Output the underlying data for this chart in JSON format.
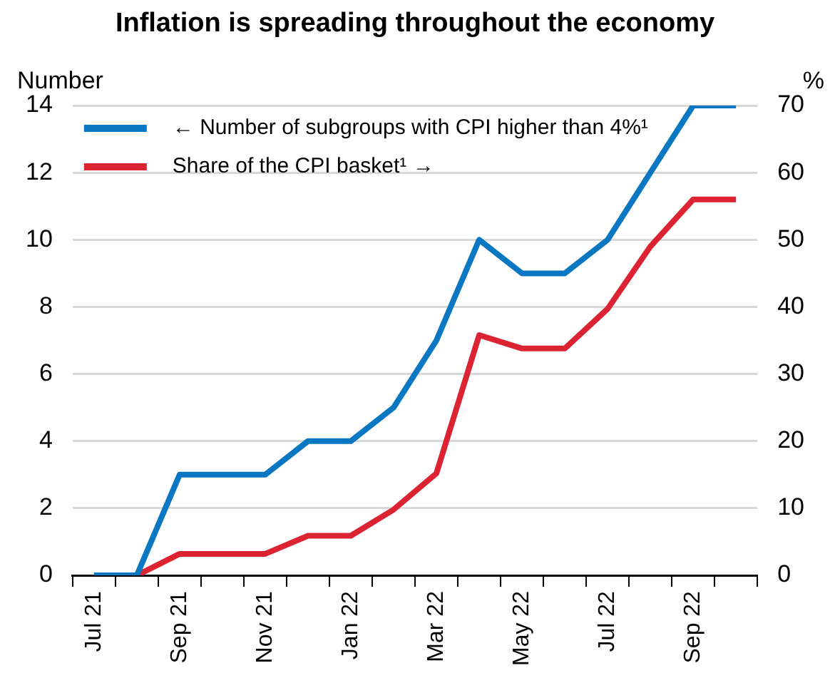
{
  "chart_data": {
    "type": "line",
    "title": "Inflation is spreading throughout the economy",
    "ylabel": "Number",
    "y2label": "%",
    "categories": [
      "Jul 21",
      null,
      "Sep 21",
      null,
      "Nov 21",
      null,
      "Jan 22",
      null,
      "Mar 22",
      null,
      "May 22",
      null,
      "Jul 22",
      null,
      "Sep 22",
      null
    ],
    "series": [
      {
        "name": "← Number of subgroups with CPI higher than 4%¹",
        "color": "#0a77c2",
        "values": [
          0,
          0,
          3,
          3,
          3,
          4,
          4,
          5,
          7,
          10,
          9,
          9,
          10,
          12,
          14,
          14
        ]
      },
      {
        "name": "Share of the CPI basket¹ →",
        "color": "#dc2332",
        "axis": "y2",
        "values": [
          0,
          0,
          3.2,
          3.2,
          3.2,
          5.9,
          5.9,
          9.8,
          15.2,
          35.8,
          33.8,
          33.8,
          39.7,
          49,
          56,
          56
        ]
      }
    ],
    "ylim": [
      0,
      14
    ],
    "yticks": [
      0,
      2,
      4,
      6,
      8,
      10,
      12,
      14
    ],
    "y2lim": [
      0,
      70
    ],
    "y2ticks": [
      0,
      10,
      20,
      30,
      40,
      50,
      60,
      70
    ],
    "grid": "y",
    "legend": "top left",
    "marker": "none",
    "line_style": "solid"
  }
}
